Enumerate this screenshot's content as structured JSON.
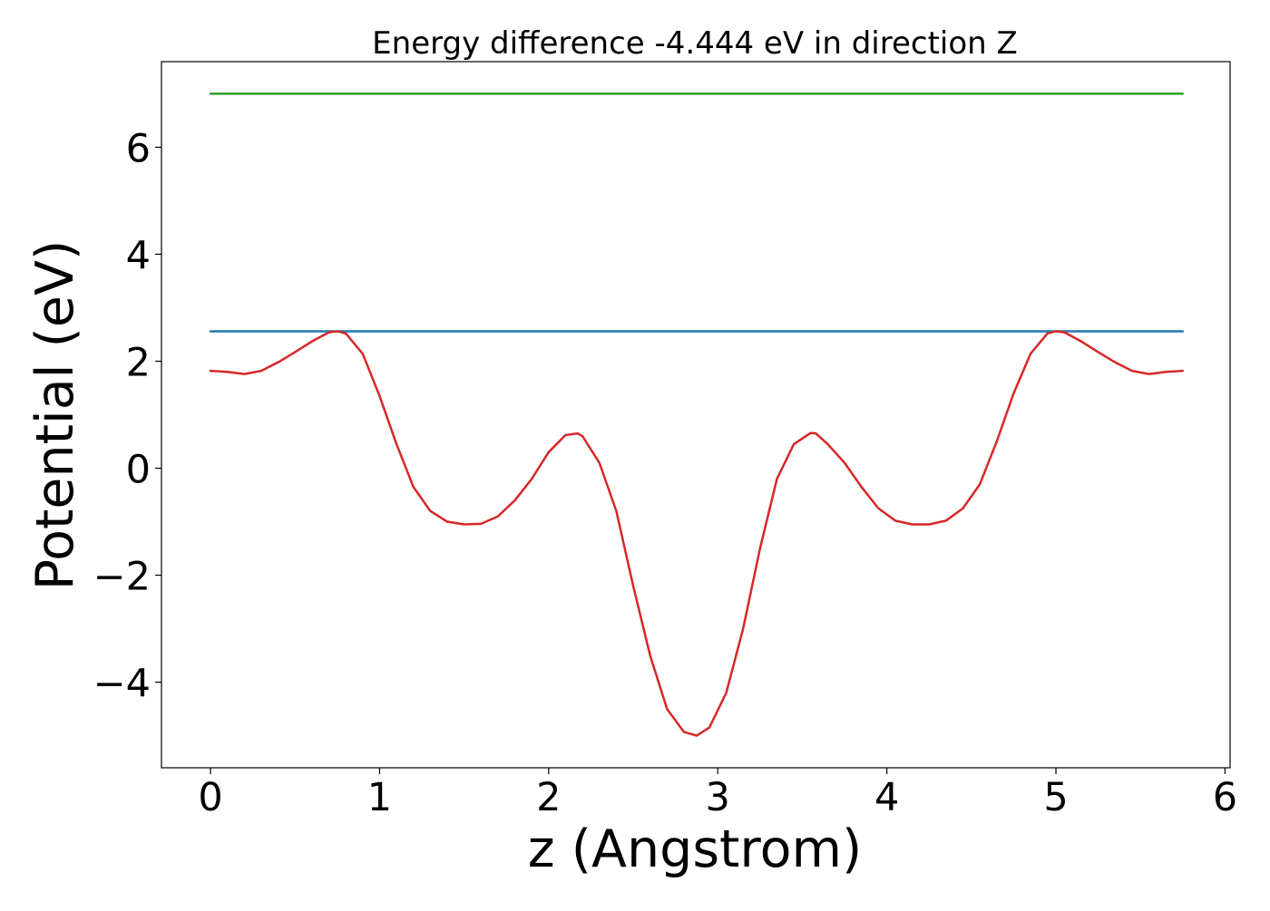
{
  "chart_data": {
    "type": "line",
    "title": "Energy difference -4.444 eV in direction Z",
    "xlabel": "z (Angstrom)",
    "ylabel": "Potential (eV)",
    "xlim": [
      -0.29,
      6.03
    ],
    "ylim": [
      -5.6,
      7.6
    ],
    "xticks": [
      {
        "value": 0,
        "label": "0"
      },
      {
        "value": 1,
        "label": "1"
      },
      {
        "value": 2,
        "label": "2"
      },
      {
        "value": 3,
        "label": "3"
      },
      {
        "value": 4,
        "label": "4"
      },
      {
        "value": 5,
        "label": "5"
      },
      {
        "value": 6,
        "label": "6"
      }
    ],
    "yticks": [
      {
        "value": -4,
        "label": "−4"
      },
      {
        "value": -2,
        "label": "−2"
      },
      {
        "value": 0,
        "label": "0"
      },
      {
        "value": 2,
        "label": "2"
      },
      {
        "value": 4,
        "label": "4"
      },
      {
        "value": 6,
        "label": "6"
      }
    ],
    "grid": false,
    "series": [
      {
        "color": "#2ca02c",
        "x": [
          0,
          5.75
        ],
        "y": [
          7.0,
          7.0
        ]
      },
      {
        "color": "#1f77b4",
        "x": [
          0,
          5.75
        ],
        "y": [
          2.56,
          2.56
        ]
      },
      {
        "color": "#d62728",
        "x": [
          0,
          0.1,
          0.2,
          0.3,
          0.4,
          0.5,
          0.6,
          0.7,
          0.75,
          0.8,
          0.9,
          1.0,
          1.1,
          1.2,
          1.3,
          1.4,
          1.5,
          1.6,
          1.7,
          1.8,
          1.9,
          2.0,
          2.1,
          2.17,
          2.2,
          2.3,
          2.4,
          2.5,
          2.6,
          2.7,
          2.8,
          2.875,
          2.95,
          3.05,
          3.15,
          3.25,
          3.35,
          3.45,
          3.55,
          3.58,
          3.65,
          3.75,
          3.85,
          3.95,
          4.05,
          4.15,
          4.25,
          4.35,
          4.45,
          4.55,
          4.65,
          4.75,
          4.85,
          4.95,
          5.0,
          5.05,
          5.15,
          5.25,
          5.35,
          5.45,
          5.55,
          5.65,
          5.75
        ],
        "y": [
          1.82,
          1.8,
          1.76,
          1.82,
          1.98,
          2.17,
          2.37,
          2.54,
          2.56,
          2.52,
          2.14,
          1.35,
          0.45,
          -0.35,
          -0.8,
          -1.0,
          -1.05,
          -1.04,
          -0.9,
          -0.6,
          -0.2,
          0.3,
          0.62,
          0.65,
          0.6,
          0.1,
          -0.8,
          -2.2,
          -3.5,
          -4.5,
          -4.93,
          -5.0,
          -4.85,
          -4.2,
          -3.0,
          -1.5,
          -0.2,
          0.45,
          0.66,
          0.65,
          0.45,
          0.1,
          -0.35,
          -0.75,
          -0.98,
          -1.05,
          -1.05,
          -0.98,
          -0.75,
          -0.3,
          0.5,
          1.4,
          2.14,
          2.52,
          2.56,
          2.54,
          2.37,
          2.17,
          1.98,
          1.82,
          1.76,
          1.8,
          1.82
        ]
      }
    ]
  }
}
